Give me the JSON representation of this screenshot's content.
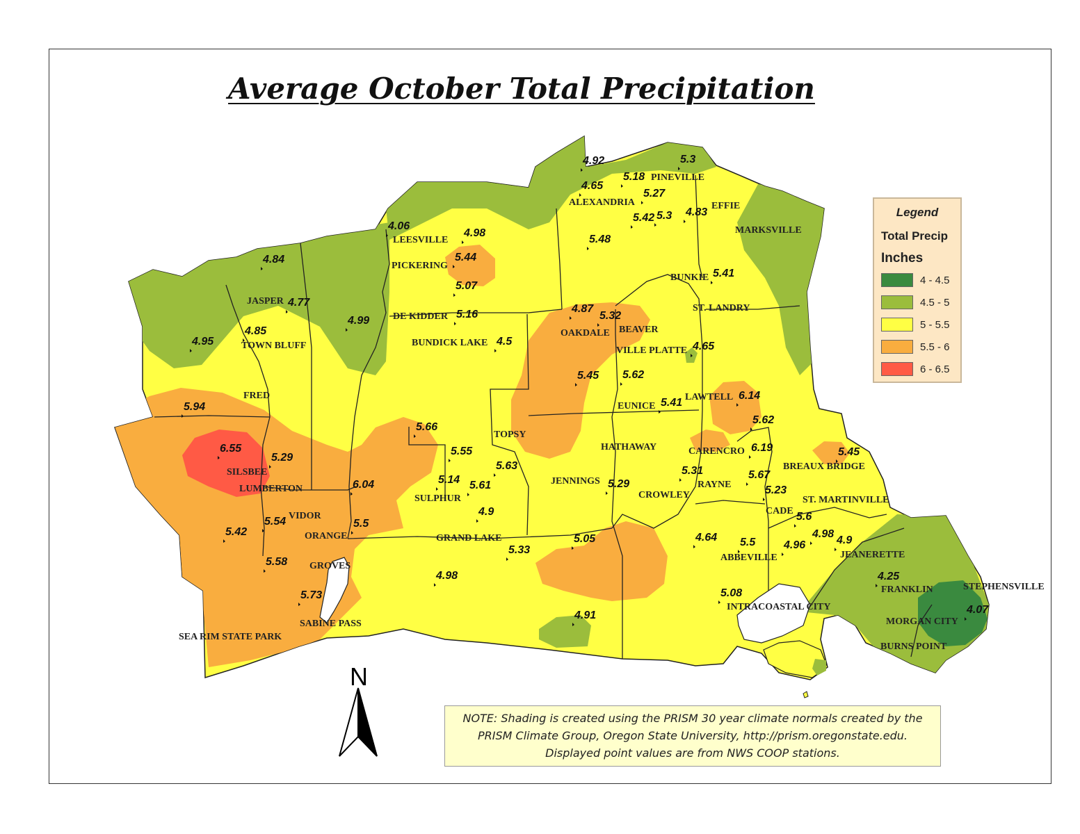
{
  "title": "Average October Total Precipitation",
  "legend": {
    "title": "Legend",
    "field": "Total Precip",
    "unit": "Inches",
    "classes": [
      {
        "label": "4 - 4.5",
        "color": "#3a8a3f"
      },
      {
        "label": "4.5 - 5",
        "color": "#9bbd3c"
      },
      {
        "label": "5 - 5.5",
        "color": "#ffff44"
      },
      {
        "label": "5.5 - 6",
        "color": "#f9ad3f"
      },
      {
        "label": "6 - 6.5",
        "color": "#ff5a45"
      }
    ]
  },
  "north_arrow": {
    "label": "N"
  },
  "note": {
    "lines": [
      "NOTE: Shading is created using the PRISM 30 year climate normals created by the",
      "PRISM Climate Group, Oregon State University, http://prism.oregonstate.edu.",
      "Displayed point values are from NWS COOP stations."
    ]
  },
  "towns": [
    "PINEVILLE",
    "ALEXANDRIA",
    "EFFIE",
    "MARKSVILLE",
    "LEESVILLE",
    "PICKERING",
    "JASPER",
    "DE KIDDER",
    "BUNKIE",
    "ST. LANDRY",
    "TOWN BLUFF",
    "BUNDICK LAKE",
    "OAKDALE",
    "BEAVER",
    "VILLE PLATTE",
    "FRED",
    "LAWTELL",
    "EUNICE",
    "TOPSY",
    "HATHAWAY",
    "CARENCRO",
    "BREAUX BRIDGE",
    "SILSBEE",
    "LUMBERTON",
    "JENNINGS",
    "SULPHUR",
    "RAYNE",
    "CROWLEY",
    "ST. MARTINVILLE",
    "VIDOR",
    "CADE",
    "ORANGE",
    "GRAND LAKE",
    "ABBEVILLE",
    "JEANERETTE",
    "GROVES",
    "FRANKLIN",
    "STEPHENSVILLE",
    "INTRACOASTAL CITY",
    "MORGAN CITY",
    "SABINE PASS",
    "SEA RIM STATE PARK",
    "BURNS POINT"
  ],
  "station_values": [
    "4.92",
    "5.3",
    "5.18",
    "4.65",
    "5.27",
    "5.42",
    "5.3",
    "4.83",
    "4.06",
    "4.98",
    "5.48",
    "4.84",
    "5.44",
    "5.41",
    "4.77",
    "5.07",
    "4.99",
    "5.16",
    "4.87",
    "5.32",
    "4.85",
    "4.95",
    "4.5",
    "4.65",
    "5.45",
    "5.62",
    "6.14",
    "5.94",
    "5.41",
    "5.62",
    "5.66",
    "6.19",
    "5.45",
    "5.55",
    "6.55",
    "5.29",
    "5.63",
    "5.31",
    "5.67",
    "5.14",
    "5.61",
    "5.29",
    "6.04",
    "5.23",
    "5.54",
    "4.9",
    "5.6",
    "5.5",
    "4.98",
    "5.42",
    "4.64",
    "5.05",
    "5.5",
    "4.96",
    "4.9",
    "5.33",
    "5.58",
    "4.25",
    "4.98",
    "5.73",
    "5.08",
    "4.07",
    "4.91"
  ]
}
